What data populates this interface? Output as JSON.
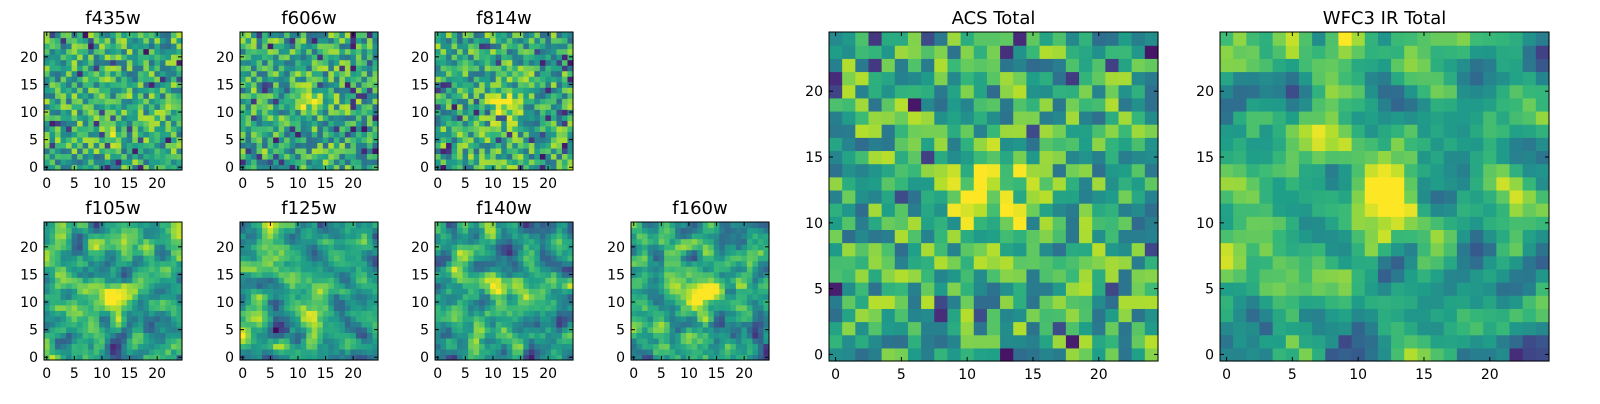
{
  "figure": {
    "description": "Grid of HST image cutouts per filter plus summed ACS and WFC3 IR totals"
  },
  "chart_data": [
    {
      "type": "heatmap",
      "title": "f435w",
      "xlim": [
        0,
        25
      ],
      "ylim": [
        0,
        25
      ],
      "xticks": [
        0,
        5,
        10,
        15,
        20
      ],
      "yticks": [
        0,
        5,
        10,
        15,
        20
      ],
      "xtick_labels": [
        "0",
        "5",
        "10",
        "15",
        "20"
      ],
      "ytick_labels": [
        "0",
        "5",
        "10",
        "15",
        "20"
      ],
      "grid_size": 25,
      "seed": 11,
      "smooth": 0,
      "peak": [
        12,
        8
      ],
      "peak_strength": 0.15,
      "low_density": 0.04,
      "colormap": "viridis"
    },
    {
      "type": "heatmap",
      "title": "f606w",
      "xlim": [
        0,
        25
      ],
      "ylim": [
        0,
        25
      ],
      "xticks": [
        0,
        5,
        10,
        15,
        20
      ],
      "yticks": [
        0,
        5,
        10,
        15,
        20
      ],
      "xtick_labels": [
        "0",
        "5",
        "10",
        "15",
        "20"
      ],
      "ytick_labels": [
        "0",
        "5",
        "10",
        "15",
        "20"
      ],
      "grid_size": 25,
      "seed": 23,
      "smooth": 0,
      "peak": [
        11,
        12
      ],
      "peak_strength": 0.35,
      "low_density": 0.07,
      "colormap": "viridis"
    },
    {
      "type": "heatmap",
      "title": "f814w",
      "xlim": [
        0,
        25
      ],
      "ylim": [
        0,
        25
      ],
      "xticks": [
        0,
        5,
        10,
        15,
        20
      ],
      "yticks": [
        0,
        5,
        10,
        15,
        20
      ],
      "xtick_labels": [
        "0",
        "5",
        "10",
        "15",
        "20"
      ],
      "ytick_labels": [
        "0",
        "5",
        "10",
        "15",
        "20"
      ],
      "grid_size": 25,
      "seed": 37,
      "smooth": 0,
      "peak": [
        12,
        11
      ],
      "peak_strength": 0.3,
      "low_density": 0.06,
      "colormap": "viridis"
    },
    {
      "type": "heatmap",
      "title": "f105w",
      "xlim": [
        0,
        25
      ],
      "ylim": [
        0,
        25
      ],
      "xticks": [
        0,
        5,
        10,
        15,
        20
      ],
      "yticks": [
        0,
        5,
        10,
        15,
        20
      ],
      "xtick_labels": [
        "0",
        "5",
        "10",
        "15",
        "20"
      ],
      "ytick_labels": [
        "0",
        "5",
        "10",
        "15",
        "20"
      ],
      "grid_size": 25,
      "seed": 41,
      "smooth": 1,
      "peak": [
        12,
        11
      ],
      "peak_strength": 0.45,
      "low_density": 0.03,
      "colormap": "viridis"
    },
    {
      "type": "heatmap",
      "title": "f125w",
      "xlim": [
        0,
        25
      ],
      "ylim": [
        0,
        25
      ],
      "xticks": [
        0,
        5,
        10,
        15,
        20
      ],
      "yticks": [
        0,
        5,
        10,
        15,
        20
      ],
      "xtick_labels": [
        "0",
        "5",
        "10",
        "15",
        "20"
      ],
      "ytick_labels": [
        "0",
        "5",
        "10",
        "15",
        "20"
      ],
      "grid_size": 25,
      "seed": 53,
      "smooth": 1,
      "peak": [
        12,
        10
      ],
      "peak_strength": 0.3,
      "low_density": 0.05,
      "colormap": "viridis"
    },
    {
      "type": "heatmap",
      "title": "f140w",
      "xlim": [
        0,
        25
      ],
      "ylim": [
        0,
        25
      ],
      "xticks": [
        0,
        5,
        10,
        15,
        20
      ],
      "yticks": [
        0,
        5,
        10,
        15,
        20
      ],
      "xtick_labels": [
        "0",
        "5",
        "10",
        "15",
        "20"
      ],
      "ytick_labels": [
        "0",
        "5",
        "10",
        "15",
        "20"
      ],
      "grid_size": 25,
      "seed": 67,
      "smooth": 1,
      "peak": [
        11,
        11
      ],
      "peak_strength": 0.35,
      "low_density": 0.04,
      "colormap": "viridis"
    },
    {
      "type": "heatmap",
      "title": "f160w",
      "xlim": [
        0,
        25
      ],
      "ylim": [
        0,
        25
      ],
      "xticks": [
        0,
        5,
        10,
        15,
        20
      ],
      "yticks": [
        0,
        5,
        10,
        15,
        20
      ],
      "xtick_labels": [
        "0",
        "5",
        "10",
        "15",
        "20"
      ],
      "ytick_labels": [
        "0",
        "5",
        "10",
        "15",
        "20"
      ],
      "grid_size": 25,
      "seed": 79,
      "smooth": 1,
      "peak": [
        12,
        12
      ],
      "peak_strength": 0.45,
      "low_density": 0.05,
      "colormap": "viridis"
    },
    {
      "type": "heatmap",
      "title": "ACS Total",
      "xlim": [
        0,
        25
      ],
      "ylim": [
        0,
        25
      ],
      "xticks": [
        0,
        5,
        10,
        15,
        20
      ],
      "yticks": [
        0,
        5,
        10,
        15,
        20
      ],
      "xtick_labels": [
        "0",
        "5",
        "10",
        "15",
        "20"
      ],
      "ytick_labels": [
        "0",
        "5",
        "10",
        "15",
        "20"
      ],
      "grid_size": 25,
      "seed": 97,
      "smooth": 0,
      "peak": [
        12,
        12
      ],
      "peak_strength": 0.4,
      "low_density": 0.04,
      "colormap": "viridis"
    },
    {
      "type": "heatmap",
      "title": "WFC3 IR Total",
      "xlim": [
        0,
        25
      ],
      "ylim": [
        0,
        25
      ],
      "xticks": [
        0,
        5,
        10,
        15,
        20
      ],
      "yticks": [
        0,
        5,
        10,
        15,
        20
      ],
      "xtick_labels": [
        "0",
        "5",
        "10",
        "15",
        "20"
      ],
      "ytick_labels": [
        "0",
        "5",
        "10",
        "15",
        "20"
      ],
      "grid_size": 25,
      "seed": 113,
      "smooth": 1,
      "peak": [
        12,
        12
      ],
      "peak_strength": 0.55,
      "low_density": 0.03,
      "colormap": "viridis"
    }
  ]
}
